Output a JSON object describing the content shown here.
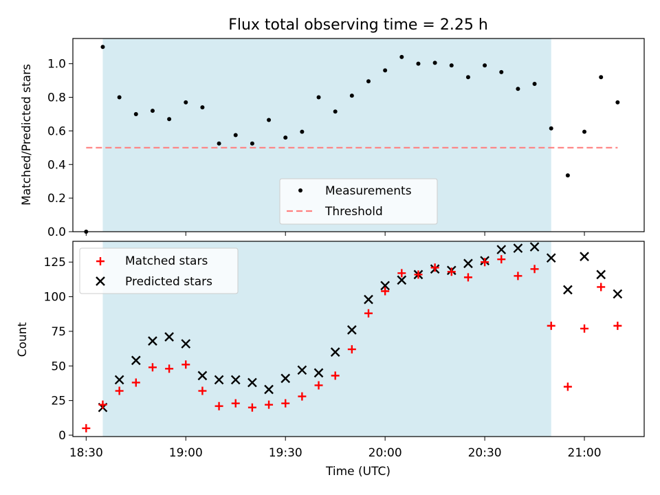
{
  "chart_data": [
    {
      "type": "scatter",
      "title": "Flux total observing time = 2.25 h",
      "xlabel": "",
      "ylabel": "Matched/Predicted stars",
      "xlim": [
        "18:26",
        "21:18"
      ],
      "ylim": [
        0,
        1.15
      ],
      "yticks": [
        0.0,
        0.2,
        0.4,
        0.6,
        0.8,
        1.0
      ],
      "ytick_labels": [
        "0.0",
        "0.2",
        "0.4",
        "0.6",
        "0.8",
        "1.0"
      ],
      "xtick_labels_visible": false,
      "shaded_span": [
        "18:35",
        "20:50"
      ],
      "shade_color": "#add8e6",
      "legend_position": "lower center",
      "series": [
        {
          "name": "Measurements",
          "marker": "dot",
          "color": "#000000",
          "x": [
            "18:30",
            "18:35",
            "18:40",
            "18:45",
            "18:50",
            "18:55",
            "19:00",
            "19:05",
            "19:10",
            "19:15",
            "19:20",
            "19:25",
            "19:30",
            "19:35",
            "19:40",
            "19:45",
            "19:50",
            "19:55",
            "20:00",
            "20:05",
            "20:10",
            "20:15",
            "20:20",
            "20:25",
            "20:30",
            "20:35",
            "20:40",
            "20:45",
            "20:50",
            "20:55",
            "21:00",
            "21:05",
            "21:10"
          ],
          "y": [
            0.0,
            1.1,
            0.8,
            0.7,
            0.72,
            0.67,
            0.77,
            0.74,
            0.525,
            0.575,
            0.525,
            0.665,
            0.56,
            0.595,
            0.8,
            0.715,
            0.81,
            0.895,
            0.96,
            1.04,
            1.0,
            1.005,
            0.99,
            0.92,
            0.99,
            0.95,
            0.85,
            0.88,
            0.615,
            0.335,
            0.595,
            0.92,
            0.77
          ]
        },
        {
          "name": "Threshold",
          "style": "dashed",
          "color": "#ff8080",
          "x": [
            "18:30",
            "21:10"
          ],
          "y": [
            0.5,
            0.5
          ]
        }
      ]
    },
    {
      "type": "scatter",
      "xlabel": "Time (UTC)",
      "ylabel": "Count",
      "xlim": [
        "18:26",
        "21:18"
      ],
      "ylim": [
        -1,
        140
      ],
      "yticks": [
        0,
        25,
        50,
        75,
        100,
        125
      ],
      "ytick_labels": [
        "0",
        "25",
        "50",
        "75",
        "100",
        "125"
      ],
      "xticks": [
        "18:30",
        "19:00",
        "19:30",
        "20:00",
        "20:30",
        "21:00"
      ],
      "xtick_labels": [
        "18:30",
        "19:00",
        "19:30",
        "20:00",
        "20:30",
        "21:00"
      ],
      "shaded_span": [
        "18:35",
        "20:50"
      ],
      "shade_color": "#add8e6",
      "legend_position": "upper left",
      "series": [
        {
          "name": "Matched stars",
          "marker": "plus",
          "color": "#ff0000",
          "x": [
            "18:30",
            "18:35",
            "18:40",
            "18:45",
            "18:50",
            "18:55",
            "19:00",
            "19:05",
            "19:10",
            "19:15",
            "19:20",
            "19:25",
            "19:30",
            "19:35",
            "19:40",
            "19:45",
            "19:50",
            "19:55",
            "20:00",
            "20:05",
            "20:10",
            "20:15",
            "20:20",
            "20:25",
            "20:30",
            "20:35",
            "20:40",
            "20:45",
            "20:50",
            "20:55",
            "21:00",
            "21:05",
            "21:10"
          ],
          "y": [
            5,
            22,
            32,
            38,
            49,
            48,
            51,
            32,
            21,
            23,
            20,
            22,
            23,
            28,
            36,
            43,
            62,
            88,
            104,
            117,
            116,
            121,
            118,
            114,
            125,
            127,
            115,
            120,
            79,
            35,
            77,
            107,
            79
          ]
        },
        {
          "name": "Predicted stars",
          "marker": "x",
          "color": "#000000",
          "x": [
            "18:35",
            "18:40",
            "18:45",
            "18:50",
            "18:55",
            "19:00",
            "19:05",
            "19:10",
            "19:15",
            "19:20",
            "19:25",
            "19:30",
            "19:35",
            "19:40",
            "19:45",
            "19:50",
            "19:55",
            "20:00",
            "20:05",
            "20:10",
            "20:15",
            "20:20",
            "20:25",
            "20:30",
            "20:35",
            "20:40",
            "20:45",
            "20:50",
            "20:55",
            "21:00",
            "21:05",
            "21:10"
          ],
          "y": [
            20,
            40,
            54,
            68,
            71,
            66,
            43,
            40,
            40,
            38,
            33,
            41,
            47,
            45,
            60,
            76,
            98,
            108,
            112,
            116,
            120,
            119,
            124,
            126,
            134,
            135,
            136,
            128,
            105,
            129,
            116,
            102
          ]
        }
      ]
    }
  ]
}
